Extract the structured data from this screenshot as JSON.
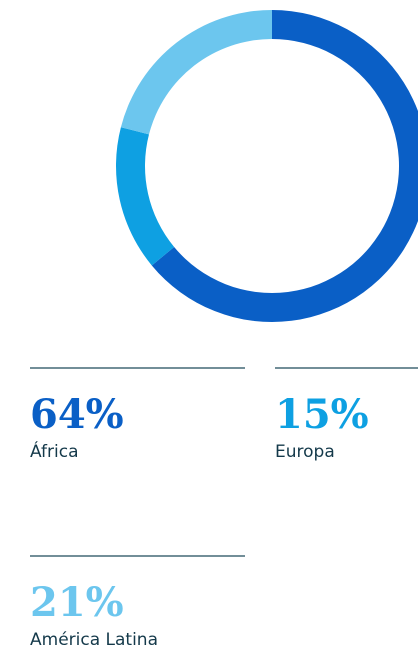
{
  "chart_data": {
    "type": "donut",
    "categories": [
      "África",
      "Europa",
      "América Latina"
    ],
    "values": [
      64,
      15,
      21
    ],
    "value_labels": [
      "64%",
      "15%",
      "21%"
    ],
    "colors": [
      "#0a5fc6",
      "#0ea0e2",
      "#6cc6ee"
    ]
  }
}
